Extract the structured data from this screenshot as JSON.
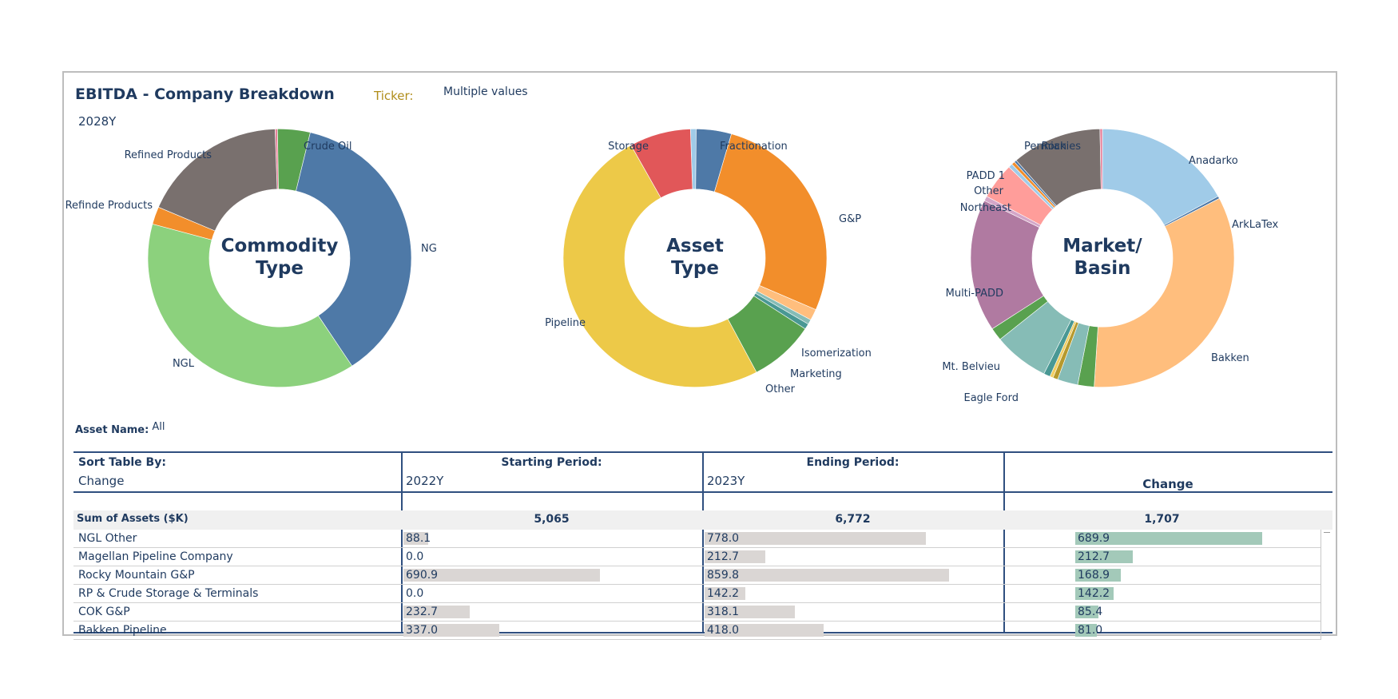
{
  "dashboard": {
    "title": "EBITDA - Company Breakdown",
    "ticker_label": "Ticker:",
    "ticker_value": "Multiple values",
    "year": "2028Y",
    "asset_name_label": "Asset Name:",
    "asset_name_value": "All"
  },
  "chart_data": [
    {
      "type": "pie",
      "title": "Commodity Type",
      "center_lines": [
        "Commodity",
        "Type"
      ],
      "slices": [
        {
          "label": "",
          "value": 0.3,
          "color": "#e8829b"
        },
        {
          "label": "Crude Oil",
          "value": 4.0,
          "color": "#59a14f"
        },
        {
          "label": "NG",
          "value": 37.0,
          "color": "#4e79a7"
        },
        {
          "label": "NGL",
          "value": 38.5,
          "color": "#8cd17d"
        },
        {
          "label": "Refinde Products",
          "value": 2.2,
          "color": "#f28e2b"
        },
        {
          "label": "Refined Products",
          "value": 18.0,
          "color": "#79706e"
        }
      ],
      "labels": [
        {
          "text": "Crude Oil"
        },
        {
          "text": "NG"
        },
        {
          "text": "NGL"
        },
        {
          "text": "Refinde Products"
        },
        {
          "text": "Refined Products"
        }
      ]
    },
    {
      "type": "pie",
      "title": "Asset Type",
      "center_lines": [
        "Asset",
        "Type"
      ],
      "slices": [
        {
          "label": "",
          "value": 0.7,
          "color": "#a0cbe8"
        },
        {
          "label": "Fractionation",
          "value": 4.3,
          "color": "#4e79a7"
        },
        {
          "label": "G&P",
          "value": 27.0,
          "color": "#f28e2b"
        },
        {
          "label": "Isomerization",
          "value": 1.4,
          "color": "#ffbe7d"
        },
        {
          "label": "",
          "value": 0.6,
          "color": "#86bcb6"
        },
        {
          "label": "Marketing",
          "value": 0.7,
          "color": "#499894"
        },
        {
          "label": "Other",
          "value": 8.0,
          "color": "#59a14f"
        },
        {
          "label": "Pipeline",
          "value": 49.5,
          "color": "#edc948"
        },
        {
          "label": "Storage",
          "value": 7.5,
          "color": "#e15759"
        }
      ],
      "labels": [
        {
          "text": "Storage"
        },
        {
          "text": "Fractionation"
        },
        {
          "text": "G&P"
        },
        {
          "text": "Isomerization"
        },
        {
          "text": "Marketing"
        },
        {
          "text": "Other"
        },
        {
          "text": "Pipeline"
        }
      ]
    },
    {
      "type": "pie",
      "title": "Market/ Basin",
      "center_lines": [
        "Market/",
        "Basin"
      ],
      "slices": [
        {
          "label": "Anadarko",
          "value": 17.0,
          "color": "#a0cbe8"
        },
        {
          "label": "ArkLaTex",
          "value": 0.3,
          "color": "#4e79a7"
        },
        {
          "label": "Bakken",
          "value": 33.5,
          "color": "#ffbe7d"
        },
        {
          "label": "",
          "value": 2.0,
          "color": "#59a14f"
        },
        {
          "label": "",
          "value": 2.5,
          "color": "#86bcb6"
        },
        {
          "label": "Eagle Ford",
          "value": 0.6,
          "color": "#b6992d"
        },
        {
          "label": "",
          "value": 0.4,
          "color": "#f1ce63"
        },
        {
          "label": "",
          "value": 0.8,
          "color": "#499894"
        },
        {
          "label": "Mt. Belvieu",
          "value": 6.8,
          "color": "#86bcb6"
        },
        {
          "label": "",
          "value": 1.6,
          "color": "#59a14f"
        },
        {
          "label": "Multi-PADD",
          "value": 16.5,
          "color": "#b07aa1"
        },
        {
          "label": "Northeast",
          "value": 0.6,
          "color": "#d4a6c8"
        },
        {
          "label": "",
          "value": 4.5,
          "color": "#ff9d9a"
        },
        {
          "label": "Other",
          "value": 0.5,
          "color": "#a0cbe8"
        },
        {
          "label": "PADD 1",
          "value": 0.4,
          "color": "#f28e2b"
        },
        {
          "label": "",
          "value": 0.3,
          "color": "#4e79a7"
        },
        {
          "label": "Permian",
          "value": 11.0,
          "color": "#79706e"
        },
        {
          "label": "Rockies",
          "value": 0.3,
          "color": "#e8829b"
        }
      ],
      "labels": [
        {
          "text": "Permian"
        },
        {
          "text": "Rockies"
        },
        {
          "text": "Anadarko"
        },
        {
          "text": "PADD 1"
        },
        {
          "text": "Other"
        },
        {
          "text": "ArkLaTex"
        },
        {
          "text": "Northeast"
        },
        {
          "text": "Multi-PADD"
        },
        {
          "text": "Bakken"
        },
        {
          "text": "Mt. Belvieu"
        },
        {
          "text": "Eagle Ford"
        }
      ]
    }
  ],
  "table": {
    "sort_label": "Sort Table By:",
    "sort_value": "Change",
    "start_label": "Starting Period:",
    "start_value": "2022Y",
    "end_label": "Ending Period:",
    "end_value": "2023Y",
    "change_label": "Change",
    "sum_label": "Sum of Assets ($K)",
    "sum_start": "5,065",
    "sum_end": "6,772",
    "sum_change": "1,707",
    "rows": [
      {
        "name": "NGL Other",
        "start": "88.1",
        "end": "778.0",
        "change": "689.9",
        "start_n": 88.1,
        "end_n": 778.0,
        "change_n": 689.9
      },
      {
        "name": "Magellan Pipeline Company",
        "start": "0.0",
        "end": "212.7",
        "change": "212.7",
        "start_n": 0.0,
        "end_n": 212.7,
        "change_n": 212.7
      },
      {
        "name": "Rocky Mountain G&P",
        "start": "690.9",
        "end": "859.8",
        "change": "168.9",
        "start_n": 690.9,
        "end_n": 859.8,
        "change_n": 168.9
      },
      {
        "name": "RP & Crude Storage & Terminals",
        "start": "0.0",
        "end": "142.2",
        "change": "142.2",
        "start_n": 0.0,
        "end_n": 142.2,
        "change_n": 142.2
      },
      {
        "name": "COK G&P",
        "start": "232.7",
        "end": "318.1",
        "change": "85.4",
        "start_n": 232.7,
        "end_n": 318.1,
        "change_n": 85.4
      },
      {
        "name": "Bakken Pipeline",
        "start": "337.0",
        "end": "418.0",
        "change": "81.0",
        "start_n": 337.0,
        "end_n": 418.0,
        "change_n": 81.0
      }
    ]
  }
}
